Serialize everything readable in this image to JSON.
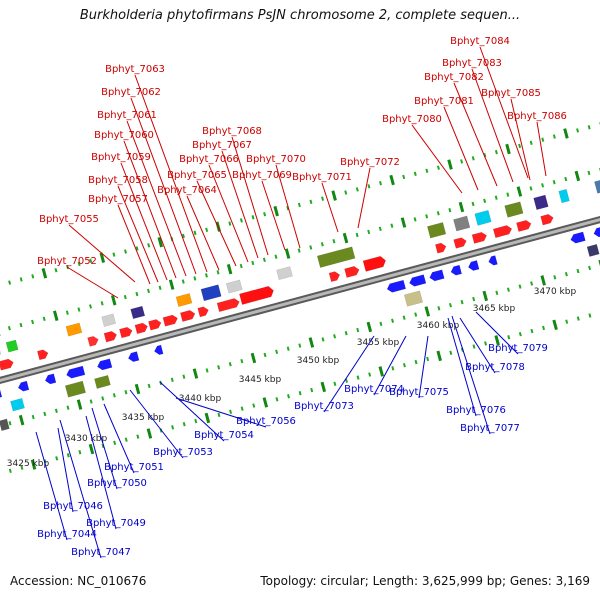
{
  "title": "Burkholderia phytofirmans PsJN chromosome 2, complete sequen...",
  "accession_label": "Accession: NC_010676",
  "stats_label": "Topology: circular; Length: 3,625,999 bp; Genes: 3,169",
  "colors": {
    "label_top": "#cc0000",
    "label_bottom": "#0000cc",
    "gene_forward": "#ff0000",
    "gene_reverse": "#0000ff",
    "backbone": "#888888",
    "tick": "#22aa22"
  },
  "ruler_labels": [
    "3425 kbp",
    "3430 kbp",
    "3435 kbp",
    "3440 kbp",
    "3445 kbp",
    "3450 kbp",
    "3455 kbp",
    "3460 kbp",
    "3465 kbp",
    "3470 kbp"
  ],
  "top_genes": [
    "Bphyt_7052",
    "Bphyt_7055",
    "Bphyt_7057",
    "Bphyt_7058",
    "Bphyt_7059",
    "Bphyt_7060",
    "Bphyt_7061",
    "Bphyt_7062",
    "Bphyt_7063",
    "Bphyt_7064",
    "Bphyt_7065",
    "Bphyt_7066",
    "Bphyt_7067",
    "Bphyt_7068",
    "Bphyt_7069",
    "Bphyt_7070",
    "Bphyt_7071",
    "Bphyt_7072",
    "Bphyt_7080",
    "Bphyt_7081",
    "Bphyt_7082",
    "Bphyt_7083",
    "Bphyt_7084",
    "Bphyt_7085",
    "Bphyt_7086"
  ],
  "bottom_genes": [
    "Bphyt_7044",
    "Bphyt_7046",
    "Bphyt_7047",
    "Bphyt_7049",
    "Bphyt_7050",
    "Bphyt_7051",
    "Bphyt_7053",
    "Bphyt_7054",
    "Bphyt_7056",
    "Bphyt_7073",
    "Bphyt_7074",
    "Bphyt_7075",
    "Bphyt_7076",
    "Bphyt_7077",
    "Bphyt_7078",
    "Bphyt_7079"
  ]
}
